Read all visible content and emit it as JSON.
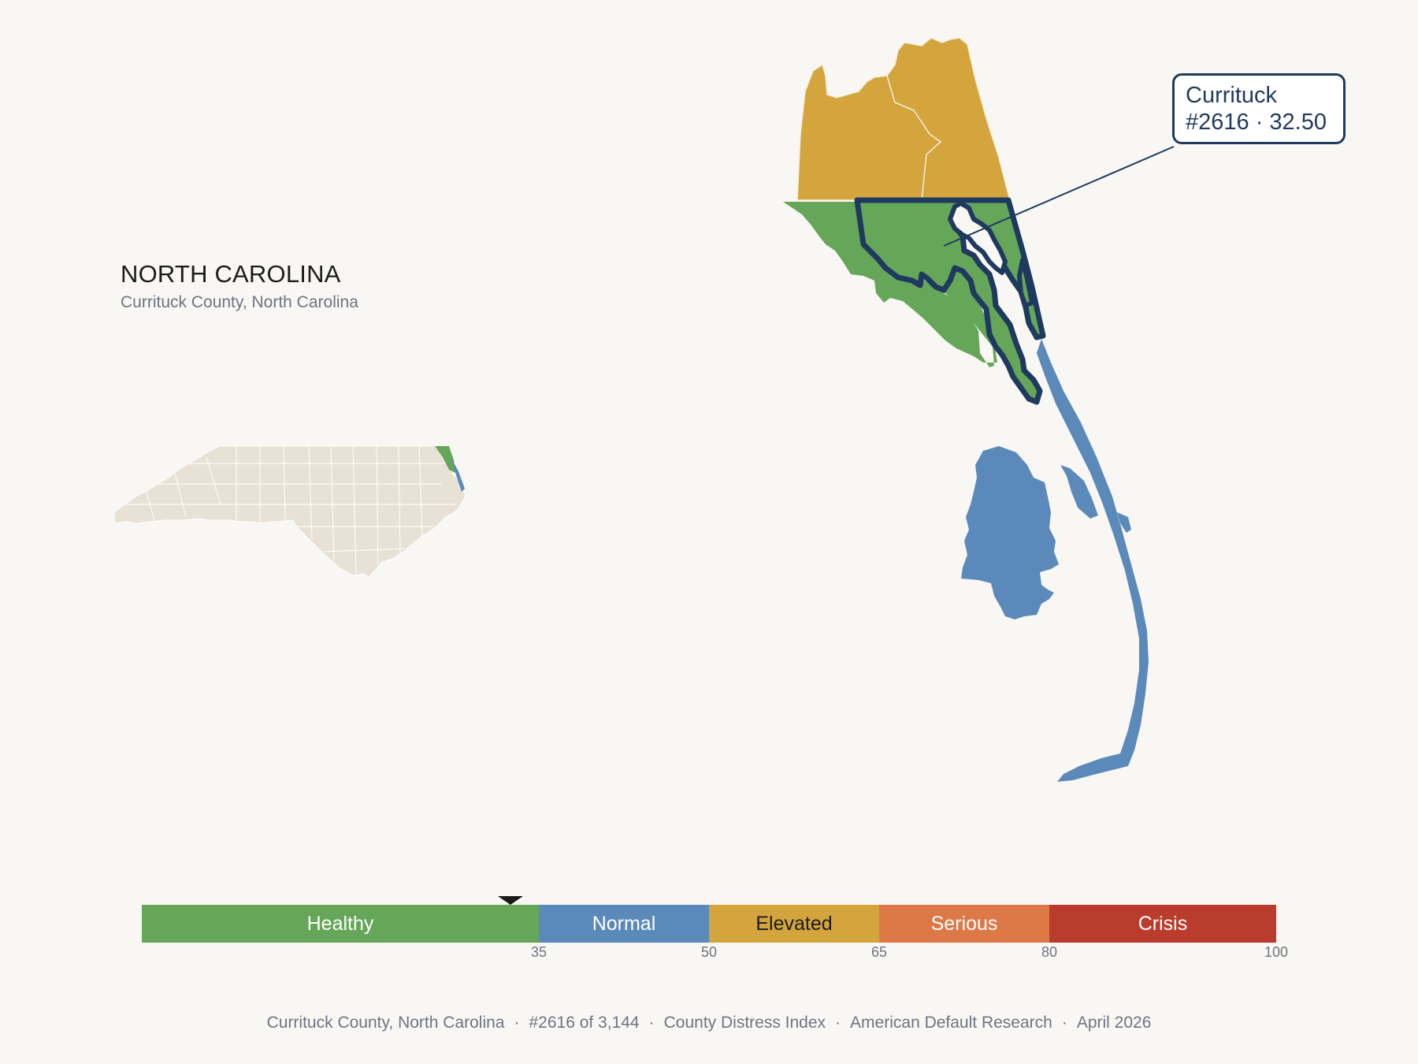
{
  "header": {
    "state_name": "NORTH CAROLINA",
    "county_full": "Currituck County, North Carolina"
  },
  "callout": {
    "county": "Currituck",
    "rank_score": "#2616 · 32.50"
  },
  "score": 32.5,
  "scale": {
    "segments": [
      {
        "label": "Healthy",
        "min": 0,
        "max": 35,
        "color": "#66a659",
        "text_color": "#ffffff"
      },
      {
        "label": "Normal",
        "min": 35,
        "max": 50,
        "color": "#5b8aba",
        "text_color": "#ffffff"
      },
      {
        "label": "Elevated",
        "min": 50,
        "max": 65,
        "color": "#d4a53c",
        "text_color": "#1c1c1c"
      },
      {
        "label": "Serious",
        "min": 65,
        "max": 80,
        "color": "#dd7847",
        "text_color": "#ffffff"
      },
      {
        "label": "Crisis",
        "min": 80,
        "max": 100,
        "color": "#b93c2c",
        "text_color": "#ffffff"
      }
    ],
    "ticks": [
      "35",
      "50",
      "65",
      "80",
      "100"
    ]
  },
  "footer": {
    "county": "Currituck County, North Carolina",
    "rank": "#2616 of 3,144",
    "index_name": "County Distress Index",
    "publisher": "American Default Research",
    "date": "April 2026"
  },
  "colors": {
    "background": "#f9f7f4",
    "highlight_outline": "#1f3a5f",
    "state_fill": "#e8e2d6",
    "healthy": "#66a659",
    "normal": "#5b8aba",
    "elevated": "#d4a53c"
  }
}
